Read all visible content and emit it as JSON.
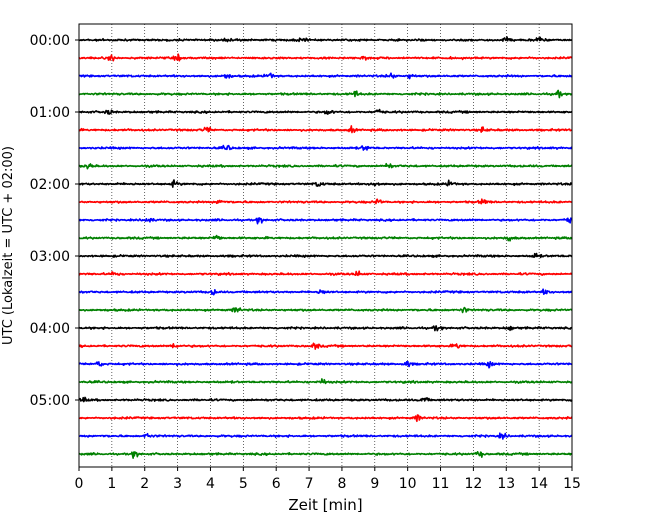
{
  "chart_data": {
    "type": "line",
    "title": "",
    "xlabel": "Zeit  [min]",
    "ylabel": "UTC (Lokalzeit = UTC + 02:00)",
    "xlim": [
      0,
      15
    ],
    "x_ticks": [
      "0",
      "1",
      "2",
      "3",
      "4",
      "5",
      "6",
      "7",
      "8",
      "9",
      "10",
      "11",
      "12",
      "13",
      "14",
      "15"
    ],
    "y_ticks": [
      "00:00",
      "01:00",
      "02:00",
      "03:00",
      "04:00",
      "05:00"
    ],
    "trace_interval_min": 15,
    "trace_count": 24,
    "trace_colors": [
      "#000000",
      "#ff0000",
      "#0000ff",
      "#008000"
    ],
    "grid": "vertical dotted at each minute",
    "legend": "none",
    "events": [
      {
        "trace": 0,
        "t": [
          4.5,
          6.8,
          13.0,
          14.0
        ]
      },
      {
        "trace": 1,
        "t": [
          1.0,
          3.0,
          8.7
        ]
      },
      {
        "trace": 2,
        "t": [
          4.5,
          5.8,
          9.5,
          10.1
        ]
      },
      {
        "trace": 3,
        "t": [
          8.4,
          14.6
        ]
      },
      {
        "trace": 4,
        "t": [
          0.9,
          7.6,
          9.1
        ]
      },
      {
        "trace": 5,
        "t": [
          3.9,
          8.3,
          12.3
        ]
      },
      {
        "trace": 6,
        "t": [
          4.5,
          8.7
        ]
      },
      {
        "trace": 7,
        "t": [
          0.3,
          9.4
        ]
      },
      {
        "trace": 8,
        "t": [
          2.9,
          7.3,
          9.0,
          11.3
        ]
      },
      {
        "trace": 9,
        "t": [
          4.3,
          9.1,
          12.3
        ]
      },
      {
        "trace": 10,
        "t": [
          2.1,
          5.5,
          14.9
        ]
      },
      {
        "trace": 11,
        "t": [
          4.2,
          13.1
        ]
      },
      {
        "trace": 12,
        "t": [
          13.9
        ]
      },
      {
        "trace": 13,
        "t": [
          1.1,
          8.5
        ]
      },
      {
        "trace": 14,
        "t": [
          4.1,
          7.4,
          14.2
        ]
      },
      {
        "trace": 15,
        "t": [
          4.8,
          11.7
        ]
      },
      {
        "trace": 16,
        "t": [
          10.9,
          13.1
        ]
      },
      {
        "trace": 17,
        "t": [
          2.9,
          7.2,
          11.5
        ]
      },
      {
        "trace": 18,
        "t": [
          0.6,
          10.0,
          12.5
        ]
      },
      {
        "trace": 19,
        "t": [
          7.4
        ]
      },
      {
        "trace": 20,
        "t": [
          0.1,
          10.5
        ]
      },
      {
        "trace": 21,
        "t": [
          10.3
        ]
      },
      {
        "trace": 22,
        "t": [
          2.1,
          12.9
        ]
      },
      {
        "trace": 23,
        "t": [
          1.7,
          12.2
        ]
      }
    ]
  }
}
